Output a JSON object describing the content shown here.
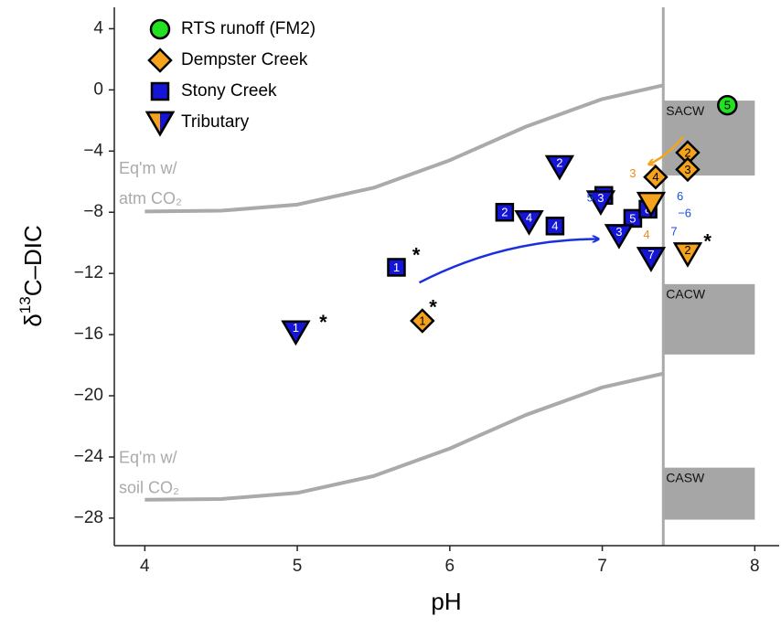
{
  "chart_data": {
    "type": "scatter",
    "xlabel": "pH",
    "ylabel": {
      "pre": "δ",
      "sup": "13",
      "post": "C–DIC"
    },
    "xlim": [
      3.8,
      8.16
    ],
    "ylim": [
      -29.8,
      5.4
    ],
    "xticks": [
      4,
      5,
      6,
      7,
      8
    ],
    "yticks": [
      4,
      0,
      {
        "value": -4,
        "label": "−4"
      },
      {
        "value": -8,
        "label": "−8"
      },
      {
        "value": -12,
        "label": "−12"
      },
      {
        "value": -16,
        "label": "−16"
      },
      {
        "value": -20,
        "label": "−20"
      },
      {
        "value": -24,
        "label": "−24"
      },
      {
        "value": -28,
        "label": "−28"
      }
    ],
    "series": [
      {
        "name": "RTS runoff (FM2)",
        "marker": "circle",
        "color": "#22e022",
        "x": [
          7.82
        ],
        "values": [
          -1.0
        ],
        "labels": [
          "5"
        ]
      },
      {
        "name": "Dempster Creek",
        "marker": "diamond",
        "color": "#f5a31d",
        "x": [
          5.82,
          7.56,
          7.56,
          7.35
        ],
        "values": [
          -15.1,
          -4.1,
          -5.2,
          -5.7
        ],
        "labels": [
          "1",
          "2",
          "3",
          "4"
        ]
      },
      {
        "name": "Stony Creek",
        "marker": "square",
        "color": "#1515d8",
        "x": [
          5.65,
          6.36,
          7.01,
          6.69,
          7.2,
          7.3
        ],
        "values": [
          -11.6,
          -8.0,
          -6.9,
          -8.9,
          -8.4,
          -7.8
        ],
        "labels": [
          "1",
          "2",
          "3",
          "4",
          "5",
          "8"
        ]
      },
      {
        "name": "Tributary",
        "marker": "triangle",
        "color": "#1515d8",
        "legend_colors": [
          "#f5a31d",
          "#1515d8"
        ],
        "x": [
          4.99,
          6.72,
          6.99,
          7.11,
          6.52,
          7.32,
          7.56,
          7.32
        ],
        "values": [
          -15.8,
          -5.0,
          -7.3,
          -9.5,
          -8.6,
          -11.0,
          -10.7,
          -7.4
        ],
        "labels": [
          "1",
          "2",
          "3",
          "3",
          "4",
          "7",
          "2",
          null
        ],
        "colors": [
          "#1515d8",
          "#1515d8",
          "#1515d8",
          "#1515d8",
          "#1515d8",
          "#1515d8",
          "#f5a31d",
          "#f5a31d"
        ]
      }
    ],
    "curves": [
      {
        "name": "Eq'm w/ atm CO₂",
        "lines": [
          "Eq'm w/",
          "atm CO₂"
        ],
        "label_at": [
          3.83,
          -5.2
        ],
        "color": "#aaaaaa",
        "x": [
          4,
          4.5,
          5,
          5.5,
          6,
          6.5,
          7,
          7.4
        ],
        "values": [
          -7.95,
          -7.9,
          -7.5,
          -6.4,
          -4.6,
          -2.4,
          -0.6,
          0.3
        ]
      },
      {
        "name": "Eq'm w/ soil CO₂",
        "lines": [
          "Eq'm w/",
          "soil CO₂"
        ],
        "label_at": [
          3.83,
          -24.1
        ],
        "color": "#aaaaaa",
        "x": [
          4,
          4.5,
          5,
          5.5,
          6,
          6.5,
          7,
          7.4
        ],
        "values": [
          -26.8,
          -26.75,
          -26.35,
          -25.25,
          -23.45,
          -21.25,
          -19.45,
          -18.55
        ]
      }
    ],
    "vline": 7.4,
    "boxes": [
      {
        "label": "SACW",
        "x": [
          7.4,
          8.0
        ],
        "y": [
          -0.7,
          -5.6
        ]
      },
      {
        "label": "CACW",
        "x": [
          7.4,
          8.0
        ],
        "y": [
          -12.7,
          -17.3
        ]
      },
      {
        "label": "CASW",
        "x": [
          7.4,
          8.0
        ],
        "y": [
          -24.7,
          -28.1
        ]
      }
    ],
    "arrows": [
      {
        "color": "#1a2fe0",
        "from": [
          5.8,
          -12.6
        ],
        "to": [
          6.97,
          -9.75
        ]
      },
      {
        "color": "#f5a31d",
        "from": [
          7.53,
          -3.05
        ],
        "to": [
          7.31,
          -4.85
        ]
      }
    ],
    "annotations": [
      {
        "text": "*",
        "x": 5.78,
        "y": -10.9,
        "color": "#000000"
      },
      {
        "text": "*",
        "x": 5.89,
        "y": -14.3,
        "color": "#000000"
      },
      {
        "text": "*",
        "x": 5.17,
        "y": -15.3,
        "color": "#000000"
      },
      {
        "text": "*",
        "x": 7.69,
        "y": -10.0,
        "color": "#000000"
      },
      {
        "text": "3",
        "x": 7.2,
        "y": -5.5,
        "color": "#f08a1c"
      },
      {
        "text": "5",
        "x": 6.92,
        "y": -7.1,
        "color": "#1a4fe0"
      },
      {
        "text": "6",
        "x": 7.51,
        "y": -7.0,
        "color": "#1a4fe0"
      },
      {
        "text": "−6",
        "x": 7.54,
        "y": -8.1,
        "color": "#1a4fe0"
      },
      {
        "text": "4",
        "x": 7.29,
        "y": -9.5,
        "color": "#f08a1c"
      },
      {
        "text": "7",
        "x": 7.47,
        "y": -9.3,
        "color": "#1a4fe0"
      }
    ]
  }
}
